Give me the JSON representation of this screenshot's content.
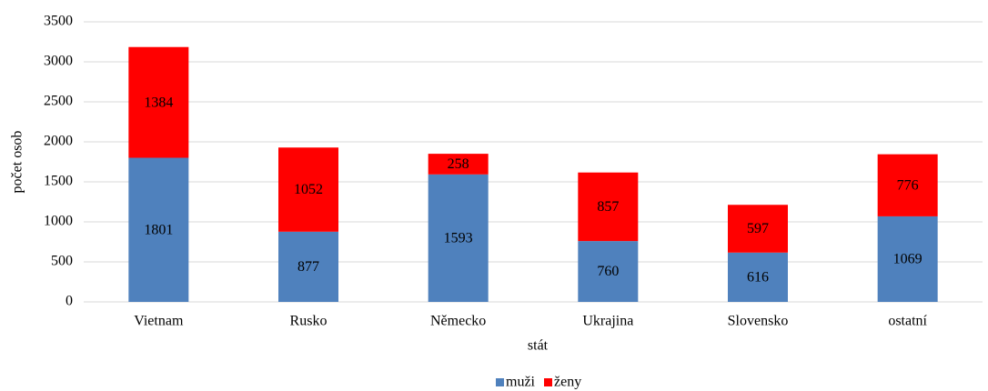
{
  "chart_data": {
    "type": "stacked_bar",
    "categories": [
      "Vietnam",
      "Rusko",
      "Německo",
      "Ukrajina",
      "Slovensko",
      "ostatní"
    ],
    "series": [
      {
        "name": "muži",
        "color": "#4f81bd",
        "values": [
          1801,
          877,
          1593,
          760,
          616,
          1069
        ]
      },
      {
        "name": "ženy",
        "color": "#ff0000",
        "values": [
          1384,
          1052,
          258,
          857,
          597,
          776
        ]
      }
    ],
    "ylim": [
      0,
      3500
    ],
    "yticks": [
      0,
      500,
      1000,
      1500,
      2000,
      2500,
      3000,
      3500
    ],
    "xlabel": "stát",
    "ylabel": "počet osob",
    "grid": true,
    "legend": "bottom"
  }
}
